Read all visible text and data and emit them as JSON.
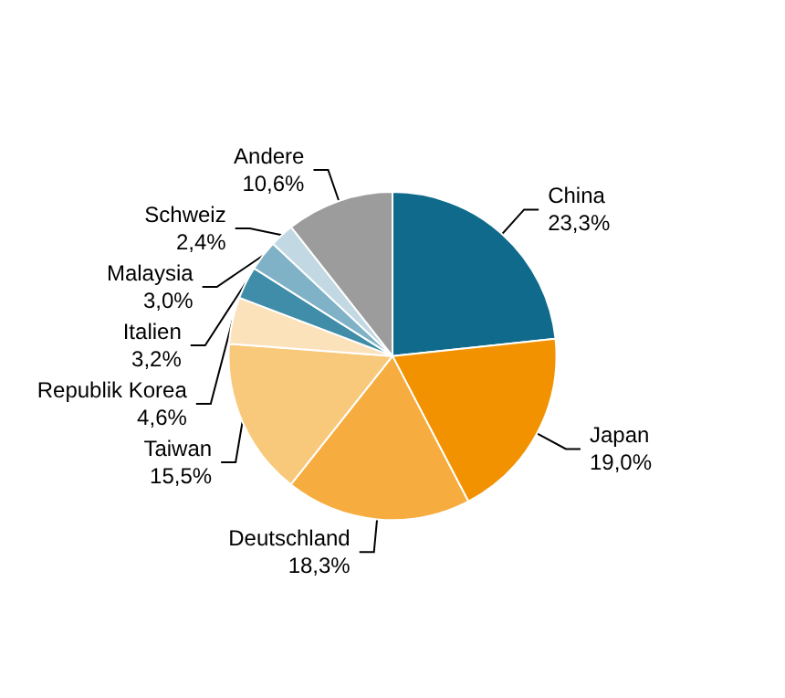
{
  "chart_data": {
    "type": "pie",
    "categories": [
      "China",
      "Japan",
      "Deutschland",
      "Taiwan",
      "Republik Korea",
      "Italien",
      "Malaysia",
      "Schweiz",
      "Andere"
    ],
    "values": [
      23.3,
      19.0,
      18.3,
      15.5,
      4.6,
      3.2,
      3.0,
      2.4,
      10.6
    ],
    "value_labels": [
      "23,3%",
      "19,0%",
      "18,3%",
      "15,5%",
      "4,6%",
      "3,2%",
      "3,0%",
      "2,4%",
      "10,6%"
    ],
    "colors": [
      "#0f6a8b",
      "#f39200",
      "#f6ac3e",
      "#f9c97b",
      "#fbe2bb",
      "#3f8da8",
      "#7fb2c6",
      "#c2d9e3",
      "#9c9c9c"
    ]
  }
}
